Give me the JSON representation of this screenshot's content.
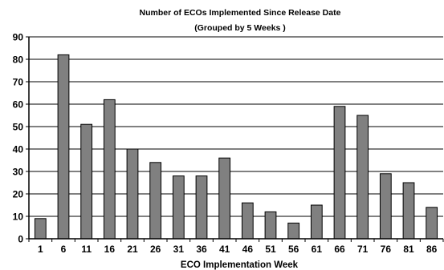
{
  "chart_data": {
    "type": "bar",
    "title": "Number of ECOs Implemented Since Release Date",
    "subtitle": "(Grouped by 5 Weeks )",
    "xlabel": "ECO Implementation Week",
    "ylabel": "",
    "categories": [
      "1",
      "6",
      "11",
      "16",
      "21",
      "26",
      "31",
      "36",
      "41",
      "46",
      "51",
      "56",
      "61",
      "66",
      "71",
      "76",
      "81",
      "86"
    ],
    "values": [
      9,
      82,
      51,
      62,
      40,
      34,
      28,
      28,
      36,
      16,
      12,
      7,
      15,
      59,
      55,
      29,
      25,
      14
    ],
    "ylim": [
      0,
      90
    ],
    "yticks": [
      0,
      10,
      20,
      30,
      40,
      50,
      60,
      70,
      80,
      90
    ],
    "grid": true,
    "legend": "none",
    "bar_color": "#808080",
    "bar_edge_color": "#000000",
    "grid_color": "#000000"
  }
}
